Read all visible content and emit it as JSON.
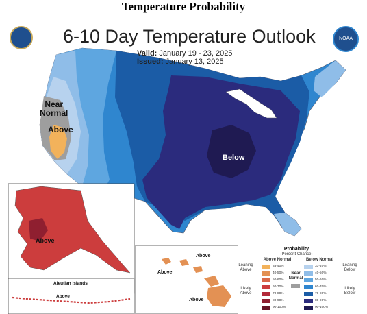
{
  "page_title": "Temperature Probability",
  "map": {
    "title": "6-10 Day Temperature Outlook",
    "valid_label": "Valid:",
    "valid_dates": "January 19 - 23, 2025",
    "issued_label": "Issued:",
    "issued_dates": "January 13, 2025",
    "region_labels": {
      "near_normal": "Near\nNormal",
      "west_above": "Above",
      "below": "Below",
      "alaska_above": "Above",
      "aleutian_above": "Above",
      "hawaii_above_1": "Above",
      "hawaii_above_2": "Above",
      "hawaii_above_3": "Above"
    },
    "inset_labels": {
      "aleutian": "Aleutian Islands"
    },
    "logos": {
      "left": "commerce-seal",
      "right": "NOAA"
    }
  },
  "legend": {
    "title": "Probability",
    "subtitle": "(Percent Chance)",
    "above_header": "Above Normal",
    "below_header": "Below Normal",
    "near_normal": "Near\nNormal",
    "leaning_above": "Leaning\nAbove",
    "likely_above": "Likely\nAbove",
    "leaning_below": "Leaning\nBelow",
    "likely_below": "Likely\nBelow",
    "above_bins": [
      {
        "label": "33-40%",
        "color": "#f2b25b"
      },
      {
        "label": "40-50%",
        "color": "#e39154"
      },
      {
        "label": "50-60%",
        "color": "#d9694a"
      },
      {
        "label": "60-70%",
        "color": "#cc3d3d"
      },
      {
        "label": "70-80%",
        "color": "#b32a3a"
      },
      {
        "label": "80-90%",
        "color": "#8f1f30"
      },
      {
        "label": "90-100%",
        "color": "#661526"
      }
    ],
    "below_bins": [
      {
        "label": "33-40%",
        "color": "#b7d2ee"
      },
      {
        "label": "40-50%",
        "color": "#8fbde8"
      },
      {
        "label": "50-60%",
        "color": "#5ea6e0"
      },
      {
        "label": "60-70%",
        "color": "#2f86cf"
      },
      {
        "label": "70-80%",
        "color": "#1b5ca6"
      },
      {
        "label": "80-90%",
        "color": "#2b2b7d"
      },
      {
        "label": "90-100%",
        "color": "#1f1a52"
      }
    ],
    "near_color": "#9e9e9e"
  }
}
